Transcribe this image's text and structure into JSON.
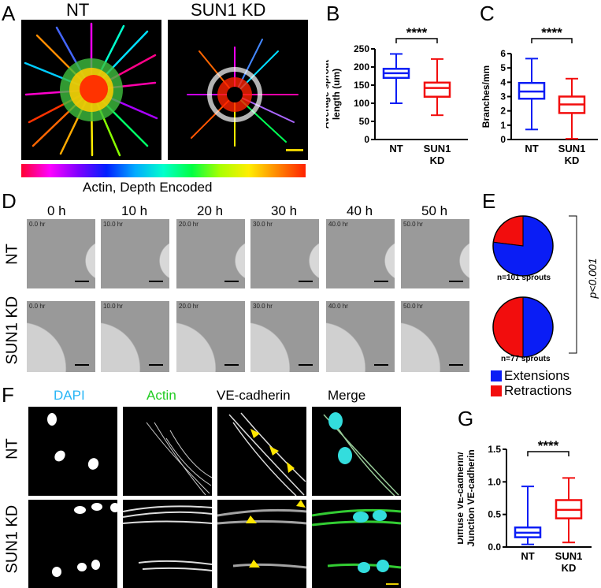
{
  "panels": {
    "A": "A",
    "B": "B",
    "C": "C",
    "D": "D",
    "E": "E",
    "F": "F",
    "G": "G"
  },
  "panelA": {
    "left_title": "NT",
    "right_title": "SUN1 KD",
    "colorbar_label": "Actin, Depth Encoded",
    "colors": {
      "scale_bar": "#e8d000"
    }
  },
  "panelD": {
    "timepoints": [
      "0 h",
      "10 h",
      "20 h",
      "30 h",
      "40 h",
      "50 h"
    ],
    "stamps": [
      "0.0 hr",
      "10.0 hr",
      "20.0 hr",
      "30.0 hr",
      "40.0 hr",
      "50.0 hr"
    ],
    "rows": [
      "NT",
      "SUN1 KD"
    ]
  },
  "panelE": {
    "pies": [
      {
        "n_label": "n=101 sprouts",
        "extensions_fraction": 0.77,
        "retractions_fraction": 0.23
      },
      {
        "n_label": "n=77 sprouts",
        "extensions_fraction": 0.5,
        "retractions_fraction": 0.5
      }
    ],
    "pvalue": "p<0.001",
    "legend": [
      {
        "label": "Extensions",
        "color": "#0a1df5"
      },
      {
        "label": "Retractions",
        "color": "#f20d0d"
      }
    ]
  },
  "panelF": {
    "columns": [
      "DAPI",
      "Actin",
      "VE-cadherin",
      "Merge"
    ],
    "column_colors": [
      "#29b6f6",
      "#22cc22",
      "#000000",
      "#000000"
    ],
    "rows": [
      "NT",
      "SUN1 KD"
    ]
  },
  "chart_data": [
    {
      "type": "boxplot",
      "panel": "B",
      "ylabel": "Average sprout\nlength (um)",
      "ylim": [
        0,
        250
      ],
      "yticks": [
        0,
        50,
        100,
        150,
        200,
        250
      ],
      "categories": [
        "NT",
        "SUN1\nKD"
      ],
      "colors": [
        "#0a1df5",
        "#f20d0d"
      ],
      "boxes": [
        {
          "min": 100,
          "q1": 170,
          "median": 183,
          "q3": 195,
          "max": 236
        },
        {
          "min": 67,
          "q1": 118,
          "median": 142,
          "q3": 157,
          "max": 222
        }
      ],
      "significance": "****"
    },
    {
      "type": "boxplot",
      "panel": "C",
      "ylabel": "Branches/mm",
      "ylim": [
        0,
        6
      ],
      "yticks": [
        0,
        1,
        2,
        3,
        4,
        5,
        6
      ],
      "categories": [
        "NT",
        "SUN1\nKD"
      ],
      "colors": [
        "#0a1df5",
        "#f20d0d"
      ],
      "boxes": [
        {
          "min": 0.7,
          "q1": 2.85,
          "median": 3.35,
          "q3": 3.95,
          "max": 5.65
        },
        {
          "min": 0.05,
          "q1": 1.85,
          "median": 2.45,
          "q3": 3.0,
          "max": 4.25
        }
      ],
      "significance": "****"
    },
    {
      "type": "boxplot",
      "panel": "G",
      "ylabel": "Diffuse VE-cadherin/\nJunction VE-cadherin",
      "ylim": [
        0,
        1.5
      ],
      "yticks": [
        0.0,
        0.5,
        1.0,
        1.5
      ],
      "ytick_labels": [
        "0.0",
        "0.5",
        "1.0",
        "1.5"
      ],
      "categories": [
        "NT",
        "SUN1\nKD"
      ],
      "colors": [
        "#0a1df5",
        "#f20d0d"
      ],
      "boxes": [
        {
          "min": 0.04,
          "q1": 0.15,
          "median": 0.22,
          "q3": 0.3,
          "max": 0.93
        },
        {
          "min": 0.07,
          "q1": 0.44,
          "median": 0.57,
          "q3": 0.72,
          "max": 1.06
        }
      ],
      "significance": "****"
    }
  ]
}
